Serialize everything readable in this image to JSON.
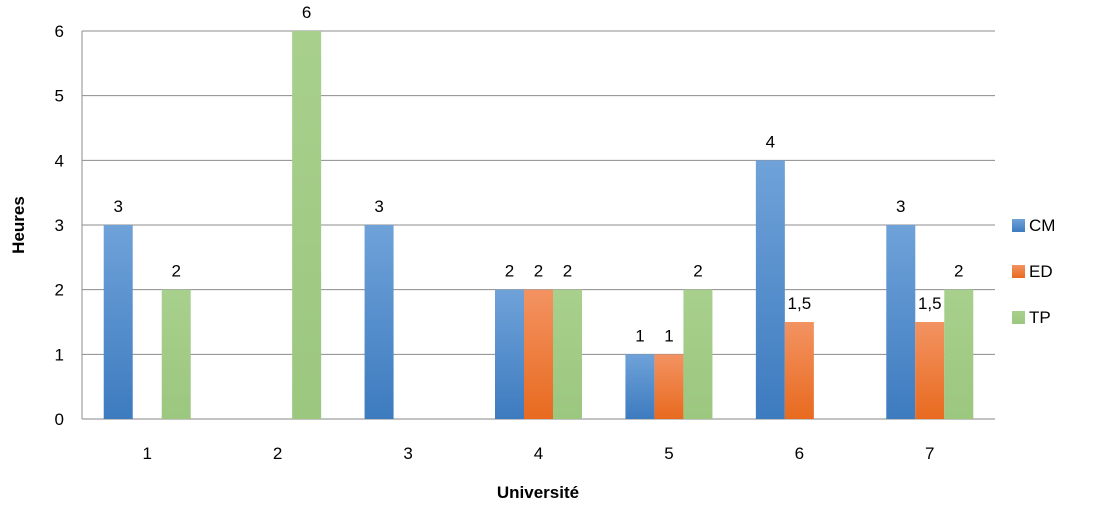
{
  "chart_data": {
    "type": "bar",
    "title": "",
    "xlabel": "Université",
    "ylabel": "Heures",
    "categories": [
      "1",
      "2",
      "3",
      "4",
      "5",
      "6",
      "7"
    ],
    "ylim": [
      0,
      6
    ],
    "yticks": [
      "0",
      "1",
      "2",
      "3",
      "4",
      "5",
      "6"
    ],
    "grid": "horizontal",
    "legend_position": "right",
    "series": [
      {
        "name": "CM",
        "color": "#4A86C8",
        "values": [
          3,
          null,
          3,
          2,
          1,
          4,
          3
        ],
        "labels": [
          "3",
          "",
          "3",
          "2",
          "1",
          "4",
          "3"
        ]
      },
      {
        "name": "ED",
        "color": "#EE7A36",
        "values": [
          null,
          null,
          null,
          2,
          1,
          1.5,
          1.5
        ],
        "labels": [
          "",
          "",
          "",
          "2",
          "1",
          "1,5",
          "1,5"
        ]
      },
      {
        "name": "TP",
        "color": "#A3CC86",
        "values": [
          2,
          6,
          null,
          2,
          2,
          null,
          2
        ],
        "labels": [
          "2",
          "6",
          "",
          "2",
          "2",
          "",
          "2"
        ]
      }
    ]
  }
}
